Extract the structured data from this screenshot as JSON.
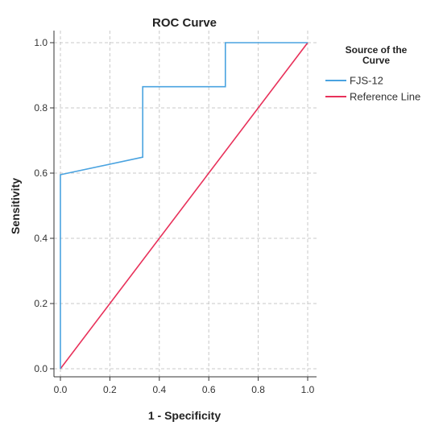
{
  "chart_data": {
    "type": "line",
    "title": "ROC Curve",
    "xlabel": "1 - Specificity",
    "ylabel": "Sensitivity",
    "xlim": [
      0,
      1
    ],
    "ylim": [
      0,
      1
    ],
    "x_ticks": [
      "0.0",
      "0.2",
      "0.4",
      "0.6",
      "0.8",
      "1.0"
    ],
    "y_ticks": [
      "0.0",
      "0.2",
      "0.4",
      "0.6",
      "0.8",
      "1.0"
    ],
    "grid": true,
    "legend": {
      "title_lines": [
        "Source of the",
        "Curve"
      ],
      "placement": "right"
    },
    "series": [
      {
        "name": "FJS-12",
        "color": "#4aa3e0",
        "points": [
          [
            0,
            0
          ],
          [
            0,
            0.595
          ],
          [
            0.333,
            0.649
          ],
          [
            0.333,
            0.865
          ],
          [
            0.667,
            0.865
          ],
          [
            0.667,
            1.0
          ],
          [
            1.0,
            1.0
          ]
        ]
      },
      {
        "name": "Reference Line",
        "color": "#e8315a",
        "points": [
          [
            0,
            0
          ],
          [
            1,
            1
          ]
        ]
      }
    ]
  }
}
